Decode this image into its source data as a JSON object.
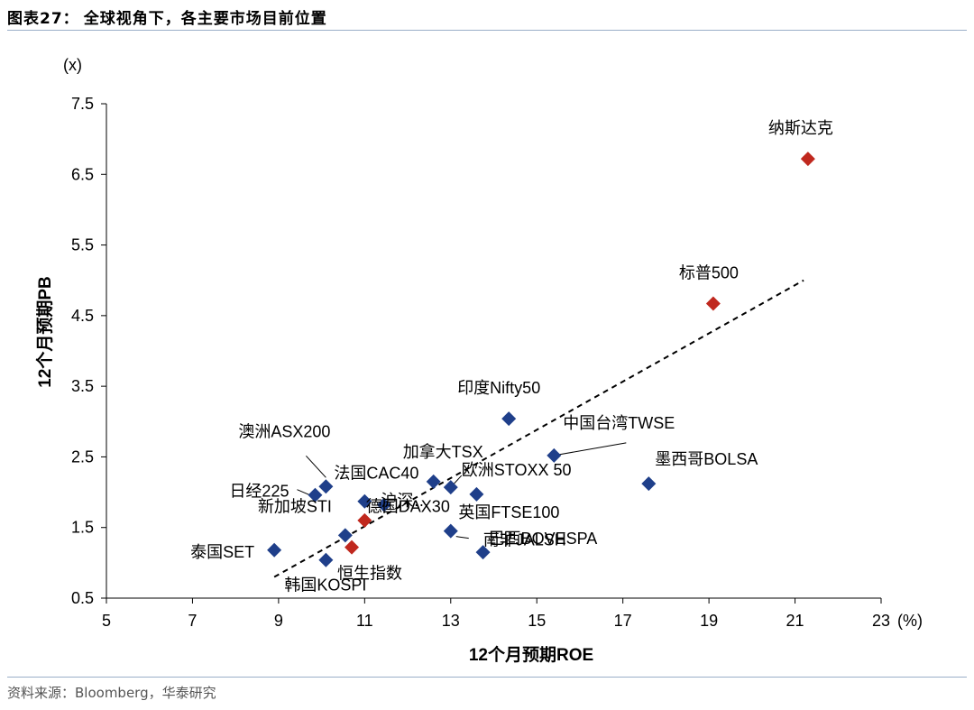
{
  "header": {
    "figure_label": "图表27：",
    "title": "全球视角下，各主要市场目前位置"
  },
  "footer": {
    "source": "资料来源：Bloomberg，华泰研究"
  },
  "colors": {
    "blue": "#1f3f8a",
    "red": "#c0281e",
    "rule": "#9aaec8"
  },
  "chart_data": {
    "type": "scatter",
    "xlabel": "12个月预期ROE",
    "ylabel": "12个月预期PB",
    "x_unit": "(%)",
    "y_unit": "(x)",
    "xlim": [
      5,
      23
    ],
    "ylim": [
      0.5,
      7.5
    ],
    "xticks": [
      "5",
      "7",
      "9",
      "11",
      "13",
      "15",
      "17",
      "19",
      "21",
      "23"
    ],
    "yticks": [
      "0.5",
      "1.5",
      "2.5",
      "3.5",
      "4.5",
      "5.5",
      "6.5",
      "7.5"
    ],
    "trendline": {
      "style": "dashed",
      "x": [
        8.9,
        21.2
      ],
      "y": [
        0.8,
        5.0
      ]
    },
    "points": [
      {
        "label": "纳斯达克",
        "x": 21.3,
        "y": 6.72,
        "color": "red"
      },
      {
        "label": "标普500",
        "x": 19.1,
        "y": 4.67,
        "color": "red"
      },
      {
        "label": "印度Nifty50",
        "x": 14.35,
        "y": 3.04,
        "color": "blue"
      },
      {
        "label": "中国台湾TWSE",
        "x": 15.4,
        "y": 2.52,
        "color": "blue"
      },
      {
        "label": "墨西哥BOLSA",
        "x": 17.6,
        "y": 2.12,
        "color": "blue"
      },
      {
        "label": "加拿大TSX",
        "x": 12.6,
        "y": 2.15,
        "color": "blue"
      },
      {
        "label": "欧洲STOXX 50",
        "x": 13.0,
        "y": 2.07,
        "color": "blue"
      },
      {
        "label": "澳洲ASX200",
        "x": 10.1,
        "y": 2.08,
        "color": "blue"
      },
      {
        "label": "日经225",
        "x": 9.85,
        "y": 1.96,
        "color": "blue"
      },
      {
        "label": "法国CAC40",
        "x": 11.0,
        "y": 1.87,
        "color": "blue"
      },
      {
        "label": "德国DAX30",
        "x": 11.45,
        "y": 1.82,
        "color": "blue"
      },
      {
        "label": "英国FTSE100",
        "x": 13.6,
        "y": 1.97,
        "color": "blue"
      },
      {
        "label": "沪深…",
        "x": 11.0,
        "y": 1.6,
        "color": "red"
      },
      {
        "label": "南非JALSH",
        "x": 13.0,
        "y": 1.45,
        "color": "blue"
      },
      {
        "label": "新加坡STI",
        "x": 10.55,
        "y": 1.39,
        "color": "blue"
      },
      {
        "label": "恒生指数",
        "x": 10.7,
        "y": 1.22,
        "color": "red"
      },
      {
        "label": "巴西BOVESPA",
        "x": 13.75,
        "y": 1.15,
        "color": "blue"
      },
      {
        "label": "泰国SET",
        "x": 8.9,
        "y": 1.18,
        "color": "blue"
      },
      {
        "label": "韩国KOSPI",
        "x": 10.1,
        "y": 1.04,
        "color": "blue"
      }
    ]
  }
}
